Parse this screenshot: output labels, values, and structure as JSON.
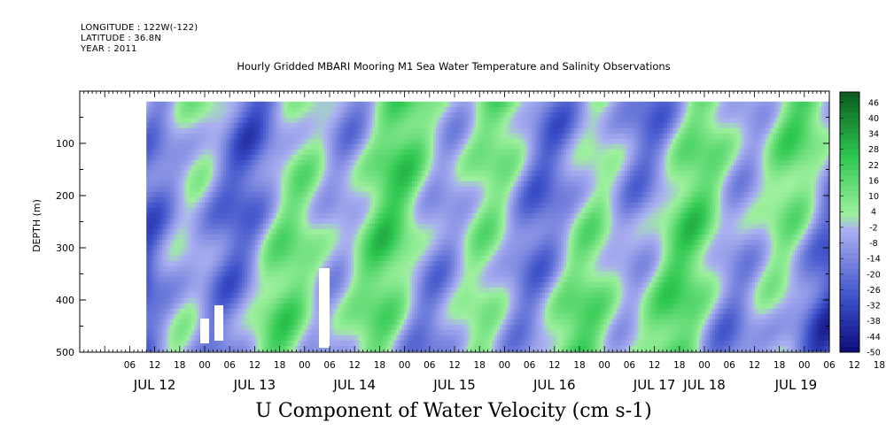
{
  "header": {
    "longitude": "LONGITUDE : 122W(-122)",
    "latitude": "LATITUDE : 36.8N",
    "year": "YEAR : 2011",
    "title": "Hourly Gridded MBARI Mooring M1 Sea Water Temperature and Salinity Observations"
  },
  "chart_data": {
    "type": "heatmap",
    "title": "U Component of Water Velocity (cm s-1)",
    "ylabel": "DEPTH (m)",
    "ylim": [
      500,
      0
    ],
    "y_ticks": [
      100,
      200,
      300,
      400,
      500
    ],
    "x_start": "2011-07-11 18:00",
    "x_end": "2011-07-19 06:00",
    "x_hour_ticks": [
      "06",
      "12",
      "18",
      "00",
      "06",
      "12",
      "18",
      "00",
      "06",
      "12",
      "18",
      "00",
      "06",
      "12",
      "18",
      "00",
      "06",
      "12",
      "18",
      "00",
      "06",
      "12",
      "18",
      "00",
      "06",
      "12",
      "18",
      "00",
      "06",
      "12",
      "18",
      "00"
    ],
    "x_day_labels": [
      "JUL 12",
      "JUL 13",
      "JUL 14",
      "JUL 15",
      "JUL 16",
      "JUL 17",
      "JUL 18",
      "JUL 19"
    ],
    "colorbar": {
      "labels": [
        "46",
        "40",
        "34",
        "28",
        "22",
        "16",
        "10",
        "4",
        "-2",
        "-8",
        "-14",
        "-20",
        "-26",
        "-32",
        "-38",
        "-44",
        "-50"
      ],
      "min": -50,
      "max": 50
    },
    "colors": {
      "blue_dark": "#0c0c78",
      "blue_mid": "#3a4ec8",
      "blue_light": "#aab0f0",
      "green_light": "#9ef09e",
      "green_mid": "#2ec850",
      "green_dark": "#0a5a1e"
    }
  }
}
